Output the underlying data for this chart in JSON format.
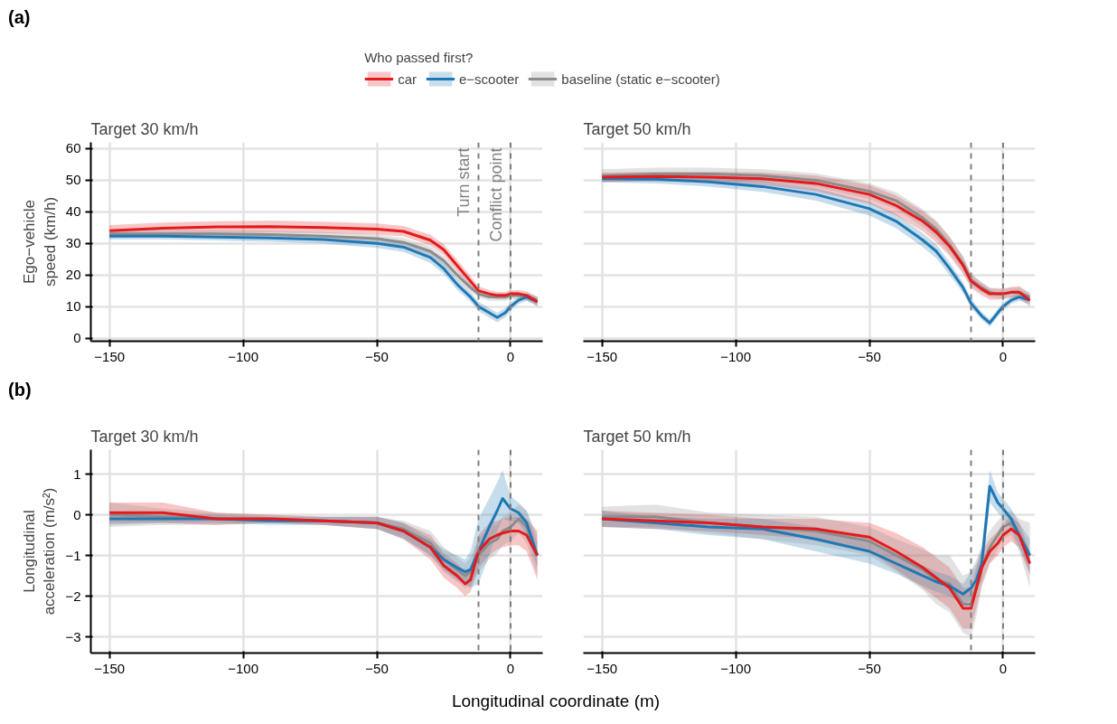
{
  "chart_data": [
    {
      "type": "line",
      "title": "Target 30 km/h",
      "ylabel": "Ego−vehicle speed (km/h)",
      "legend_title": "Who passed first?",
      "legend": "top",
      "annotations": [
        "(a)"
      ],
      "grid": true,
      "xlim": [
        -157,
        12
      ],
      "ylim": [
        -1,
        62
      ],
      "xticks": [
        {
          "value": -150,
          "label": "−150"
        },
        {
          "value": -100,
          "label": "−100"
        },
        {
          "value": -50,
          "label": "−50"
        },
        0
      ],
      "yticks": [
        0,
        10,
        20,
        30,
        40,
        50,
        60
      ],
      "x": [
        -150,
        -130,
        -110,
        -90,
        -70,
        -50,
        -40,
        -30,
        -25,
        -20,
        -15,
        -12,
        -8,
        -5,
        -2,
        0,
        3,
        6,
        10
      ],
      "ref_lines": [
        {
          "axis": "x",
          "value": -12,
          "label": "Turn start",
          "color": "#7f7f7f",
          "line_style": "dashed"
        },
        {
          "axis": "x",
          "value": 0,
          "label": "Conflict point",
          "color": "#7f7f7f",
          "line_style": "dashed"
        }
      ],
      "series": [
        {
          "name": "car",
          "color": "#e41a1c",
          "values": [
            34,
            34.8,
            35.2,
            35.3,
            35,
            34.5,
            33.8,
            31,
            28,
            23,
            18,
            15,
            14,
            13.5,
            13.5,
            14,
            14,
            13.5,
            11.5
          ],
          "lower": [
            32.3,
            33,
            33.3,
            33.4,
            33.2,
            32.8,
            32.2,
            29.3,
            26.3,
            21.3,
            16.5,
            13.7,
            12.8,
            12.3,
            12.4,
            12.8,
            12.8,
            12.2,
            10
          ],
          "upper": [
            35.8,
            36.6,
            37,
            37.2,
            36.9,
            36.3,
            35.5,
            32.7,
            29.7,
            24.8,
            19.6,
            16.4,
            15.2,
            14.7,
            14.6,
            15.2,
            15.2,
            14.8,
            13
          ]
        },
        {
          "name": "e−scooter",
          "color": "#1f78b4",
          "values": [
            32.3,
            32.3,
            32,
            31.7,
            31.2,
            30,
            28.8,
            25.5,
            22,
            17,
            13,
            10,
            8,
            6.5,
            8,
            10,
            12,
            13,
            11.5
          ],
          "lower": [
            31.2,
            31.2,
            30.9,
            30.5,
            29.9,
            28.6,
            27.3,
            23.8,
            20.3,
            15.3,
            11.5,
            8.5,
            6.5,
            5,
            6.5,
            8.7,
            10.8,
            11.8,
            10.2
          ],
          "upper": [
            33.4,
            33.4,
            33.2,
            32.9,
            32.5,
            31.4,
            30.3,
            27.2,
            23.7,
            18.7,
            14.5,
            11.5,
            9.5,
            8,
            9.5,
            11.3,
            13.2,
            14.2,
            12.8
          ]
        },
        {
          "name": "baseline (static e−scooter)",
          "color": "#8c8c8c",
          "values": [
            33,
            33,
            33,
            32.8,
            32.3,
            31.5,
            30.3,
            27.5,
            24.5,
            20,
            16,
            14,
            13,
            13,
            13,
            13.5,
            13.5,
            13,
            12
          ],
          "lower": [
            31.8,
            31.8,
            31.8,
            31.6,
            31,
            30.2,
            28.9,
            26,
            23,
            18.5,
            14.7,
            12.8,
            11.8,
            11.8,
            11.8,
            12.3,
            12.3,
            11.8,
            10.8
          ],
          "upper": [
            34.2,
            34.2,
            34.2,
            34,
            33.6,
            32.8,
            31.7,
            29,
            26,
            21.5,
            17.3,
            15.2,
            14.2,
            14.2,
            14.2,
            14.7,
            14.7,
            14.2,
            13.2
          ]
        }
      ]
    },
    {
      "type": "line",
      "title": "Target 50 km/h",
      "grid": true,
      "tick_labels": "x",
      "xlim": [
        -157,
        12
      ],
      "ylim": [
        -1,
        62
      ],
      "xticks": [
        {
          "value": -150,
          "label": "−150"
        },
        {
          "value": -100,
          "label": "−100"
        },
        {
          "value": -50,
          "label": "−50"
        },
        0
      ],
      "yticks": [
        0,
        10,
        20,
        30,
        40,
        50,
        60
      ],
      "x": [
        -150,
        -130,
        -110,
        -90,
        -70,
        -50,
        -40,
        -30,
        -25,
        -20,
        -15,
        -12,
        -8,
        -5,
        -2,
        0,
        3,
        6,
        10
      ],
      "ref_lines": [
        {
          "axis": "x",
          "value": -12,
          "color": "#7f7f7f",
          "line_style": "dashed"
        },
        {
          "axis": "x",
          "value": 0,
          "color": "#7f7f7f",
          "line_style": "dashed"
        }
      ],
      "series": [
        {
          "color": "#e41a1c",
          "values": [
            51,
            51.2,
            51,
            50.5,
            49,
            45.5,
            42,
            37,
            33.5,
            29,
            23,
            18,
            15.5,
            14,
            14,
            14,
            14.5,
            14.5,
            12
          ],
          "lower": [
            49.5,
            49.7,
            49.3,
            48.5,
            46.5,
            42.5,
            38.8,
            33.8,
            30.3,
            26,
            20.3,
            15.8,
            13.5,
            12.2,
            12.2,
            12.3,
            12.8,
            12.5,
            10
          ],
          "upper": [
            52.5,
            52.7,
            52.7,
            52.5,
            51.5,
            48.5,
            45.2,
            40.2,
            36.7,
            32,
            25.7,
            20.2,
            17.5,
            15.8,
            15.8,
            15.7,
            16.2,
            16.5,
            14
          ]
        },
        {
          "color": "#1f78b4",
          "values": [
            50.5,
            50.3,
            49.5,
            48,
            45.5,
            41,
            37,
            31,
            27.5,
            22,
            16,
            11,
            7,
            4.8,
            8,
            10,
            12,
            13,
            12
          ],
          "lower": [
            49.3,
            49,
            48,
            46.3,
            43.5,
            38.8,
            34.8,
            28.8,
            25.3,
            20,
            14.3,
            9.5,
            5.8,
            3.5,
            6.8,
            8.8,
            10.8,
            11.8,
            10.8
          ],
          "upper": [
            51.7,
            51.6,
            51,
            49.7,
            47.5,
            43.2,
            39.2,
            33.2,
            29.7,
            24,
            17.7,
            12.5,
            8.2,
            6.1,
            9.2,
            11.2,
            13.2,
            14.2,
            13.2
          ]
        },
        {
          "color": "#8c8c8c",
          "values": [
            51.5,
            52,
            52,
            51.5,
            50,
            46.5,
            43.5,
            38,
            34.5,
            29.5,
            23.5,
            18.5,
            16,
            14.5,
            14,
            14,
            14.5,
            14.5,
            13
          ],
          "lower": [
            49.5,
            50,
            50,
            49.5,
            47.8,
            44,
            40.8,
            35.2,
            31.7,
            26.8,
            21,
            16.5,
            14.3,
            13,
            12.6,
            12.6,
            13,
            13,
            11.5
          ],
          "upper": [
            53.5,
            54,
            54,
            53.5,
            52.2,
            49,
            46.2,
            40.8,
            37.3,
            32.2,
            26,
            20.5,
            17.7,
            16,
            15.4,
            15.4,
            16,
            16,
            14.5
          ]
        }
      ]
    },
    {
      "type": "line",
      "title": "Target 30 km/h",
      "ylabel": "Longitudinal acceleration (m/s²)",
      "xlabel": "Longitudinal coordinate (m)",
      "annotations": [
        "(b)"
      ],
      "grid": true,
      "xlim": [
        -157,
        12
      ],
      "ylim": [
        -3.4,
        1.6
      ],
      "xticks": [
        {
          "value": -150,
          "label": "−150"
        },
        {
          "value": -100,
          "label": "−100"
        },
        {
          "value": -50,
          "label": "−50"
        },
        0
      ],
      "yticks": [
        {
          "value": -3,
          "label": "−3"
        },
        {
          "value": -2,
          "label": "−2"
        },
        {
          "value": -1,
          "label": "−1"
        },
        0,
        1
      ],
      "x": [
        -150,
        -130,
        -110,
        -90,
        -70,
        -50,
        -40,
        -30,
        -25,
        -20,
        -17,
        -15,
        -12,
        -8,
        -5,
        -3,
        0,
        3,
        6,
        10
      ],
      "ref_lines": [
        {
          "axis": "x",
          "value": -12,
          "color": "#7f7f7f",
          "line_style": "dashed"
        },
        {
          "axis": "x",
          "value": 0,
          "color": "#7f7f7f",
          "line_style": "dashed"
        }
      ],
      "series": [
        {
          "color": "#e41a1c",
          "values": [
            0.05,
            0.05,
            -0.1,
            -0.1,
            -0.15,
            -0.2,
            -0.4,
            -0.8,
            -1.25,
            -1.5,
            -1.7,
            -1.6,
            -0.9,
            -0.6,
            -0.5,
            -0.45,
            -0.4,
            -0.4,
            -0.5,
            -1.0
          ],
          "lower": [
            -0.2,
            -0.2,
            -0.25,
            -0.2,
            -0.25,
            -0.35,
            -0.6,
            -1.1,
            -1.55,
            -1.8,
            -2.0,
            -1.9,
            -1.3,
            -1.0,
            -0.85,
            -0.8,
            -0.75,
            -0.75,
            -0.9,
            -1.6
          ],
          "upper": [
            0.3,
            0.3,
            0.05,
            0,
            -0.05,
            -0.05,
            -0.2,
            -0.5,
            -0.95,
            -1.2,
            -1.4,
            -1.3,
            -0.5,
            -0.2,
            -0.15,
            -0.1,
            -0.05,
            -0.05,
            -0.1,
            -0.4
          ]
        },
        {
          "color": "#1f78b4",
          "values": [
            -0.1,
            -0.1,
            -0.1,
            -0.15,
            -0.15,
            -0.2,
            -0.4,
            -0.8,
            -1.1,
            -1.3,
            -1.4,
            -1.35,
            -0.9,
            -0.3,
            0.1,
            0.4,
            0.15,
            0.05,
            -0.2,
            -1.0
          ],
          "lower": [
            -0.25,
            -0.2,
            -0.2,
            -0.25,
            -0.25,
            -0.35,
            -0.6,
            -1.0,
            -1.35,
            -1.6,
            -1.7,
            -1.8,
            -1.7,
            -1.0,
            -0.4,
            -0.1,
            -0.15,
            -0.2,
            -0.5,
            -1.3
          ],
          "upper": [
            0.05,
            0,
            0,
            -0.05,
            -0.05,
            -0.05,
            -0.2,
            -0.6,
            -0.85,
            -1.0,
            -1.1,
            -0.9,
            -0.1,
            0.4,
            0.8,
            1.1,
            0.45,
            0.3,
            0.1,
            -0.7
          ]
        },
        {
          "color": "#8c8c8c",
          "values": [
            0,
            -0.05,
            -0.1,
            -0.1,
            -0.15,
            -0.2,
            -0.35,
            -0.7,
            -1.1,
            -1.35,
            -1.5,
            -1.4,
            -1.0,
            -0.7,
            -0.6,
            -0.4,
            -0.3,
            -0.1,
            -0.3,
            -1.0
          ],
          "lower": [
            -0.3,
            -0.25,
            -0.25,
            -0.2,
            -0.25,
            -0.35,
            -0.55,
            -1.0,
            -1.4,
            -1.65,
            -1.8,
            -1.75,
            -1.4,
            -1.1,
            -0.95,
            -0.75,
            -0.65,
            -0.45,
            -0.7,
            -1.5
          ],
          "upper": [
            0.3,
            0.15,
            0.05,
            0,
            -0.05,
            -0.05,
            -0.15,
            -0.4,
            -0.8,
            -1.05,
            -1.2,
            -1.05,
            -0.6,
            -0.3,
            -0.25,
            -0.05,
            0.05,
            0.25,
            0.1,
            -0.5
          ]
        }
      ]
    },
    {
      "type": "line",
      "title": "Target 50 km/h",
      "grid": true,
      "tick_labels": "x",
      "xlim": [
        -157,
        12
      ],
      "ylim": [
        -3.4,
        1.6
      ],
      "xticks": [
        {
          "value": -150,
          "label": "−150"
        },
        {
          "value": -100,
          "label": "−100"
        },
        {
          "value": -50,
          "label": "−50"
        },
        0
      ],
      "yticks": [
        -3,
        -2,
        -1,
        0,
        1
      ],
      "x": [
        -150,
        -130,
        -110,
        -90,
        -70,
        -50,
        -40,
        -30,
        -25,
        -20,
        -15,
        -12,
        -10,
        -8,
        -5,
        -2,
        0,
        3,
        6,
        10
      ],
      "ref_lines": [
        {
          "axis": "x",
          "value": -12,
          "color": "#7f7f7f",
          "line_style": "dashed"
        },
        {
          "axis": "x",
          "value": 0,
          "color": "#7f7f7f",
          "line_style": "dashed"
        }
      ],
      "series": [
        {
          "color": "#e41a1c",
          "values": [
            -0.1,
            -0.15,
            -0.2,
            -0.3,
            -0.35,
            -0.55,
            -0.9,
            -1.3,
            -1.55,
            -1.8,
            -2.3,
            -2.3,
            -1.8,
            -1.3,
            -0.9,
            -0.7,
            -0.5,
            -0.35,
            -0.5,
            -1.2
          ],
          "lower": [
            -0.3,
            -0.35,
            -0.4,
            -0.5,
            -0.6,
            -0.9,
            -1.35,
            -1.8,
            -2.05,
            -2.3,
            -2.8,
            -2.8,
            -2.3,
            -1.7,
            -1.2,
            -1.0,
            -0.8,
            -0.65,
            -0.8,
            -1.5
          ],
          "upper": [
            0.1,
            0.05,
            0,
            -0.1,
            -0.1,
            -0.2,
            -0.45,
            -0.8,
            -1.05,
            -1.3,
            -1.8,
            -1.8,
            -1.3,
            -0.9,
            -0.6,
            -0.4,
            -0.2,
            -0.05,
            -0.2,
            -0.9
          ]
        },
        {
          "color": "#1f78b4",
          "values": [
            -0.1,
            -0.2,
            -0.3,
            -0.35,
            -0.6,
            -0.9,
            -1.2,
            -1.5,
            -1.65,
            -1.75,
            -1.95,
            -1.8,
            -1.6,
            -1.2,
            0.7,
            0.3,
            0.15,
            -0.1,
            -0.5,
            -1.0
          ],
          "lower": [
            -0.3,
            -0.35,
            -0.5,
            -0.6,
            -0.9,
            -1.2,
            -1.45,
            -1.75,
            -1.9,
            -2.0,
            -2.2,
            -2.1,
            -1.9,
            -1.6,
            0.3,
            0.05,
            -0.1,
            -0.35,
            -0.8,
            -1.4
          ],
          "upper": [
            0.1,
            -0.05,
            -0.1,
            -0.1,
            -0.3,
            -0.6,
            -0.95,
            -1.25,
            -1.4,
            -1.5,
            -1.7,
            -1.4,
            -1.2,
            -0.8,
            1.1,
            0.55,
            0.4,
            0.15,
            -0.2,
            -0.6
          ]
        },
        {
          "color": "#8c8c8c",
          "values": [
            -0.05,
            -0.05,
            -0.2,
            -0.3,
            -0.4,
            -0.65,
            -1.0,
            -1.35,
            -1.6,
            -1.7,
            -2.2,
            -2.2,
            -1.8,
            -1.3,
            -0.8,
            -0.5,
            -0.3,
            -0.2,
            -0.5,
            -1.0
          ],
          "lower": [
            -0.3,
            -0.3,
            -0.45,
            -0.6,
            -0.75,
            -1.0,
            -1.4,
            -1.85,
            -2.2,
            -2.4,
            -2.9,
            -3.0,
            -2.5,
            -1.8,
            -1.2,
            -0.85,
            -0.6,
            -0.5,
            -0.9,
            -1.8
          ],
          "upper": [
            0.2,
            0.25,
            0.05,
            0,
            -0.05,
            -0.3,
            -0.6,
            -0.85,
            -1.0,
            -1.0,
            -1.5,
            -1.4,
            -1.1,
            -0.8,
            -0.4,
            -0.15,
            0,
            0.1,
            -0.1,
            -0.2
          ]
        }
      ]
    }
  ]
}
